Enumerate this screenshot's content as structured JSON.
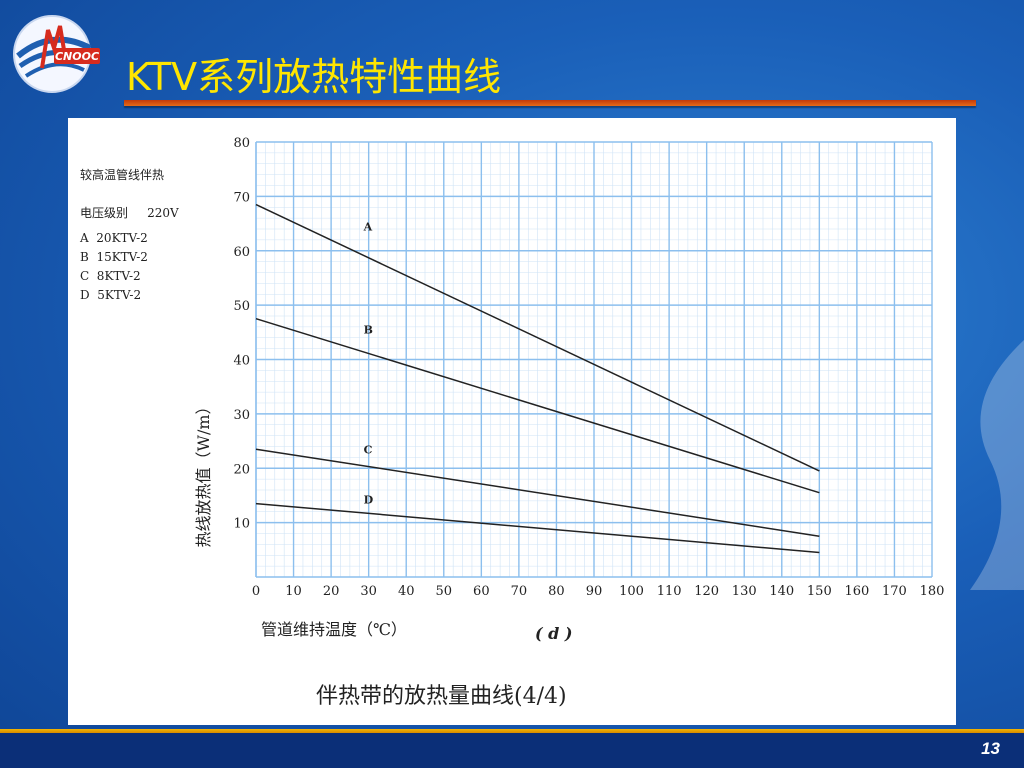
{
  "slide": {
    "title": "KTV系列放热特性曲线",
    "page_number": "13",
    "logo_text": "CNOOC"
  },
  "chart_data": {
    "type": "line",
    "panel_heading": "较高温管线伴热",
    "voltage_label": "电压级别",
    "voltage_value": "220V",
    "legend": [
      "A  20KTV-2",
      "B  15KTV-2",
      "C  8KTV-2",
      "D  5KTV-2"
    ],
    "ylabel": "热线放热值（W/m）",
    "xlabel": "管道维持温度（℃）",
    "subplot_label": "( d )",
    "caption": "伴热带的放热量曲线(4/4)",
    "xlim": [
      0,
      180
    ],
    "ylim": [
      0,
      80
    ],
    "x_ticks": [
      0,
      10,
      20,
      30,
      40,
      50,
      60,
      70,
      80,
      90,
      100,
      110,
      120,
      130,
      140,
      150,
      160,
      170,
      180
    ],
    "y_ticks": [
      10,
      20,
      30,
      40,
      50,
      60,
      70,
      80
    ],
    "grid": true,
    "series": [
      {
        "name": "A",
        "x": [
          0,
          150
        ],
        "y": [
          68.5,
          19.5
        ]
      },
      {
        "name": "B",
        "x": [
          0,
          150
        ],
        "y": [
          47.5,
          15.5
        ]
      },
      {
        "name": "C",
        "x": [
          0,
          150
        ],
        "y": [
          23.5,
          7.5
        ]
      },
      {
        "name": "D",
        "x": [
          0,
          150
        ],
        "y": [
          13.5,
          4.5
        ]
      }
    ],
    "series_label_pos": [
      {
        "name": "A",
        "x": 18
      },
      {
        "name": "B",
        "x": 18
      },
      {
        "name": "C",
        "x": 18
      },
      {
        "name": "D",
        "x": 18
      }
    ]
  }
}
